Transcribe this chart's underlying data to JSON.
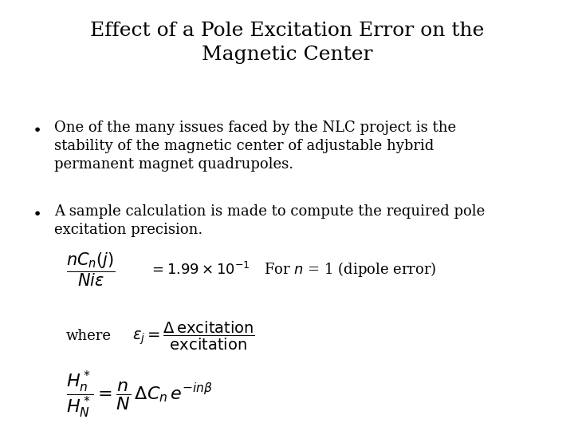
{
  "title_line1": "Effect of a Pole Excitation Error on the",
  "title_line2": "Magnetic Center",
  "bullet1_line1": "One of the many issues faced by the NLC project is the",
  "bullet1_line2": "stability of the magnetic center of adjustable hybrid",
  "bullet1_line3": "permanent magnet quadrupoles.",
  "bullet2_line1": "A sample calculation is made to compute the required pole",
  "bullet2_line2": "excitation precision.",
  "background_color": "#ffffff",
  "text_color": "#000000",
  "title_fontsize": 18,
  "body_fontsize": 13,
  "math_fontsize": 13
}
